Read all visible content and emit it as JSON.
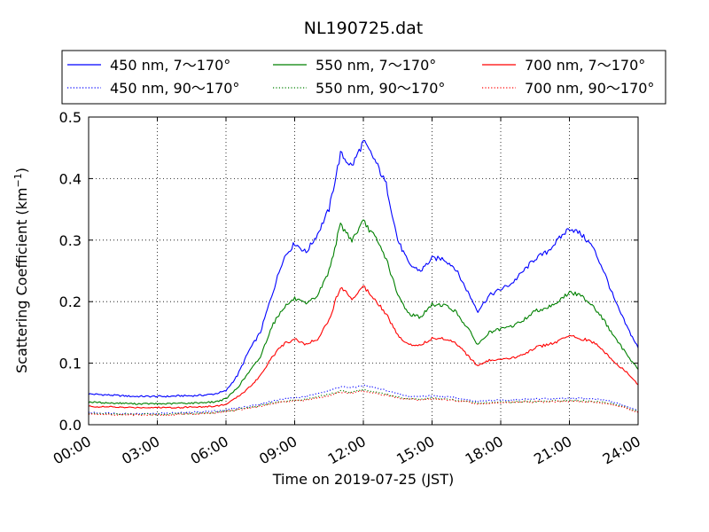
{
  "chart_data": {
    "type": "line",
    "title": "NL190725.dat",
    "xlabel": "Time on 2019-07-25 (JST)",
    "ylabel": "Scattering Coefficient (km",
    "ylabel_sup": "−1",
    "ylabel_close": ")",
    "xlim": [
      0,
      24
    ],
    "ylim": [
      0,
      0.5
    ],
    "grid": true,
    "legend_position": "top",
    "x_ticks": [
      0,
      3,
      6,
      9,
      12,
      15,
      18,
      21,
      24
    ],
    "x_tick_labels": [
      "00:00",
      "03:00",
      "06:00",
      "09:00",
      "12:00",
      "15:00",
      "18:00",
      "21:00",
      "24:00"
    ],
    "y_ticks": [
      0,
      0.1,
      0.2,
      0.3,
      0.4,
      0.5
    ],
    "y_tick_labels": [
      "0.0",
      "0.1",
      "0.2",
      "0.3",
      "0.4",
      "0.5"
    ],
    "x": [
      0,
      0.5,
      1,
      1.5,
      2,
      2.5,
      3,
      3.5,
      4,
      4.5,
      5,
      5.5,
      6,
      6.5,
      7,
      7.5,
      8,
      8.5,
      9,
      9.5,
      10,
      10.5,
      11,
      11.5,
      12,
      12.5,
      13,
      13.5,
      14,
      14.5,
      15,
      15.5,
      16,
      16.5,
      17,
      17.5,
      18,
      18.5,
      19,
      19.5,
      20,
      20.5,
      21,
      21.5,
      22,
      22.5,
      23,
      23.5,
      24
    ],
    "series": [
      {
        "name": "450 nm, 7～170°",
        "color": "#0000ff",
        "style": "solid",
        "values": [
          0.05,
          0.049,
          0.048,
          0.047,
          0.046,
          0.046,
          0.046,
          0.046,
          0.047,
          0.047,
          0.048,
          0.05,
          0.055,
          0.08,
          0.12,
          0.15,
          0.21,
          0.27,
          0.295,
          0.28,
          0.31,
          0.35,
          0.44,
          0.42,
          0.46,
          0.43,
          0.39,
          0.3,
          0.26,
          0.25,
          0.27,
          0.27,
          0.255,
          0.22,
          0.185,
          0.21,
          0.22,
          0.23,
          0.25,
          0.27,
          0.28,
          0.3,
          0.32,
          0.31,
          0.29,
          0.25,
          0.2,
          0.16,
          0.125
        ]
      },
      {
        "name": "450 nm, 90～170°",
        "color": "#0000ff",
        "style": "dotted",
        "values": [
          0.02,
          0.019,
          0.019,
          0.018,
          0.018,
          0.018,
          0.018,
          0.019,
          0.019,
          0.02,
          0.021,
          0.022,
          0.024,
          0.027,
          0.03,
          0.034,
          0.038,
          0.042,
          0.044,
          0.045,
          0.052,
          0.055,
          0.062,
          0.06,
          0.064,
          0.06,
          0.056,
          0.05,
          0.046,
          0.046,
          0.047,
          0.046,
          0.044,
          0.041,
          0.038,
          0.039,
          0.04,
          0.04,
          0.041,
          0.042,
          0.042,
          0.042,
          0.043,
          0.043,
          0.042,
          0.04,
          0.036,
          0.03,
          0.022
        ]
      },
      {
        "name": "550 nm, 7～170°",
        "color": "#008000",
        "style": "solid",
        "values": [
          0.037,
          0.036,
          0.035,
          0.035,
          0.034,
          0.034,
          0.034,
          0.034,
          0.035,
          0.035,
          0.036,
          0.037,
          0.042,
          0.06,
          0.085,
          0.11,
          0.16,
          0.19,
          0.205,
          0.195,
          0.21,
          0.25,
          0.325,
          0.3,
          0.33,
          0.305,
          0.27,
          0.21,
          0.18,
          0.175,
          0.195,
          0.195,
          0.185,
          0.16,
          0.13,
          0.15,
          0.155,
          0.16,
          0.17,
          0.185,
          0.19,
          0.2,
          0.215,
          0.21,
          0.195,
          0.17,
          0.14,
          0.115,
          0.09
        ]
      },
      {
        "name": "550 nm, 90～170°",
        "color": "#008000",
        "style": "dotted",
        "values": [
          0.018,
          0.018,
          0.017,
          0.017,
          0.017,
          0.017,
          0.017,
          0.017,
          0.018,
          0.018,
          0.019,
          0.02,
          0.022,
          0.025,
          0.028,
          0.031,
          0.035,
          0.038,
          0.04,
          0.041,
          0.046,
          0.049,
          0.055,
          0.053,
          0.057,
          0.053,
          0.05,
          0.045,
          0.042,
          0.042,
          0.043,
          0.042,
          0.04,
          0.038,
          0.035,
          0.036,
          0.037,
          0.037,
          0.038,
          0.038,
          0.038,
          0.039,
          0.039,
          0.039,
          0.038,
          0.036,
          0.033,
          0.028,
          0.021
        ]
      },
      {
        "name": "700 nm, 7～170°",
        "color": "#ff0000",
        "style": "solid",
        "values": [
          0.03,
          0.029,
          0.029,
          0.028,
          0.028,
          0.028,
          0.028,
          0.028,
          0.028,
          0.029,
          0.029,
          0.03,
          0.033,
          0.045,
          0.06,
          0.08,
          0.11,
          0.13,
          0.14,
          0.13,
          0.14,
          0.17,
          0.225,
          0.205,
          0.225,
          0.205,
          0.18,
          0.145,
          0.13,
          0.13,
          0.14,
          0.14,
          0.135,
          0.115,
          0.095,
          0.105,
          0.105,
          0.108,
          0.115,
          0.125,
          0.13,
          0.135,
          0.145,
          0.14,
          0.135,
          0.12,
          0.1,
          0.085,
          0.065
        ]
      },
      {
        "name": "700 nm, 90～170°",
        "color": "#ff0000",
        "style": "dotted",
        "values": [
          0.017,
          0.017,
          0.016,
          0.016,
          0.016,
          0.016,
          0.016,
          0.016,
          0.017,
          0.017,
          0.018,
          0.019,
          0.021,
          0.024,
          0.027,
          0.03,
          0.034,
          0.037,
          0.039,
          0.04,
          0.044,
          0.047,
          0.053,
          0.051,
          0.055,
          0.051,
          0.048,
          0.044,
          0.041,
          0.041,
          0.042,
          0.041,
          0.039,
          0.037,
          0.034,
          0.035,
          0.036,
          0.036,
          0.037,
          0.037,
          0.037,
          0.038,
          0.038,
          0.038,
          0.037,
          0.035,
          0.032,
          0.027,
          0.02
        ]
      }
    ]
  }
}
